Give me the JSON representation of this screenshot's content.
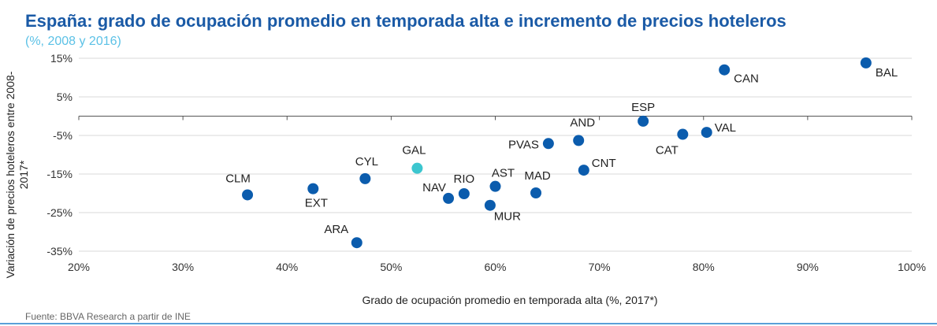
{
  "header": {
    "title": "España: grado de ocupación promedio en temporada alta e incremento de precios hoteleros",
    "subtitle": "(%, 2008 y 2016)"
  },
  "footer": {
    "source": "Fuente: BBVA Research a partir de INE"
  },
  "colors": {
    "primary": "#0b5cad",
    "highlight": "#3cc6cf",
    "grid": "#d9d9d9"
  },
  "chart_data": {
    "type": "scatter",
    "xlabel": "Grado de ocupación promedio en temporada alta (%, 2017*)",
    "ylabel": "Variación de precios hoteleros entre 2008-2017*",
    "xlim": [
      20,
      100
    ],
    "ylim": [
      -35,
      15
    ],
    "x_ticks": [
      20,
      30,
      40,
      50,
      60,
      70,
      80,
      90,
      100
    ],
    "x_tick_labels": [
      "20%",
      "30%",
      "40%",
      "50%",
      "60%",
      "70%",
      "80%",
      "90%",
      "100%"
    ],
    "y_ticks": [
      15,
      5,
      -5,
      -15,
      -25,
      -35
    ],
    "y_tick_labels": [
      "15%",
      "5%",
      "-5%",
      "-15%",
      "-25%",
      "-35%"
    ],
    "grid": "horizontal",
    "points": [
      {
        "label": "CLM",
        "x": 36.2,
        "y": -20.4,
        "highlight": false
      },
      {
        "label": "EXT",
        "x": 42.5,
        "y": -18.8,
        "highlight": false
      },
      {
        "label": "CYL",
        "x": 47.5,
        "y": -16.2,
        "highlight": false
      },
      {
        "label": "ARA",
        "x": 46.7,
        "y": -32.8,
        "highlight": false
      },
      {
        "label": "GAL",
        "x": 52.5,
        "y": -13.5,
        "highlight": true
      },
      {
        "label": "NAV",
        "x": 55.5,
        "y": -21.3,
        "highlight": false
      },
      {
        "label": "RIO",
        "x": 57.0,
        "y": -20.1,
        "highlight": false
      },
      {
        "label": "AST",
        "x": 60.0,
        "y": -18.2,
        "highlight": false
      },
      {
        "label": "MUR",
        "x": 59.5,
        "y": -23.1,
        "highlight": false
      },
      {
        "label": "MAD",
        "x": 63.9,
        "y": -19.9,
        "highlight": false
      },
      {
        "label": "PVAS",
        "x": 65.1,
        "y": -7.1,
        "highlight": false
      },
      {
        "label": "AND",
        "x": 68.0,
        "y": -6.3,
        "highlight": false
      },
      {
        "label": "CNT",
        "x": 68.5,
        "y": -14.0,
        "highlight": false
      },
      {
        "label": "ESP",
        "x": 74.2,
        "y": -1.3,
        "highlight": false
      },
      {
        "label": "CAT",
        "x": 78.0,
        "y": -4.7,
        "highlight": false
      },
      {
        "label": "VAL",
        "x": 80.3,
        "y": -4.2,
        "highlight": false
      },
      {
        "label": "CAN",
        "x": 82.0,
        "y": 12.0,
        "highlight": false
      },
      {
        "label": "BAL",
        "x": 95.6,
        "y": 13.8,
        "highlight": false
      }
    ]
  }
}
